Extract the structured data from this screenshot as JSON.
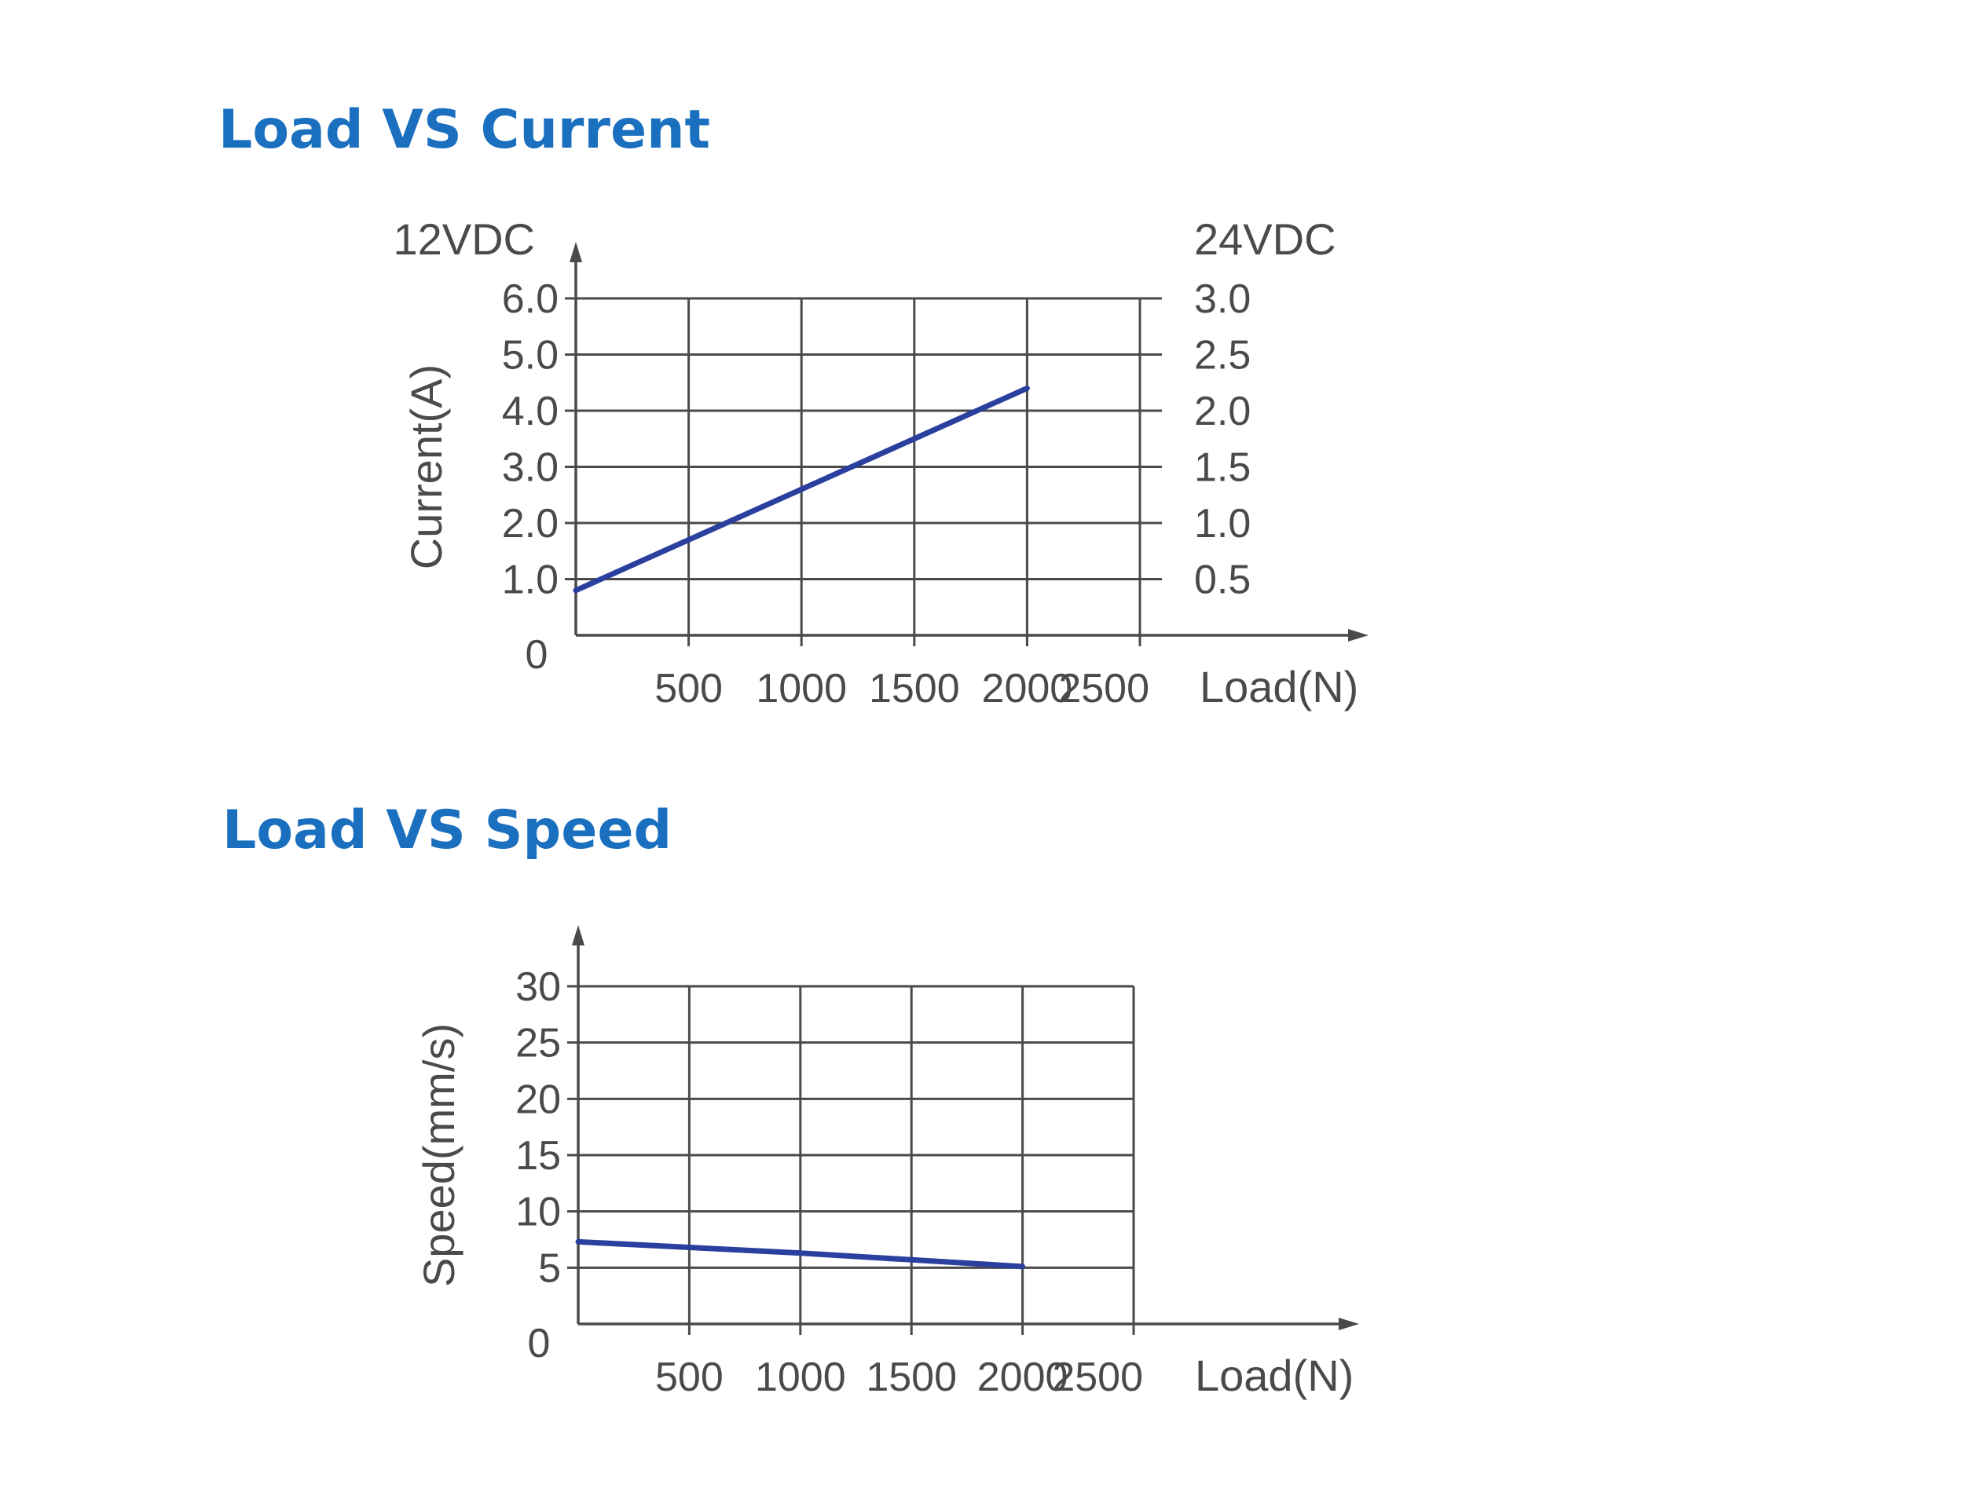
{
  "colors": {
    "title": "#1a6fbf",
    "line": "#2a3f9e",
    "grid": "#4a4a4a",
    "text": "#4a4a4a"
  },
  "chart_data": [
    {
      "type": "line",
      "title": "Load VS Current",
      "xlabel": "Load(N)",
      "ylabel": "Current(A)",
      "y_left_header": "12VDC",
      "y_right_header": "24VDC",
      "xlim": [
        0,
        2500
      ],
      "ylim": [
        0,
        6.0
      ],
      "x_ticks": [
        "500",
        "1000",
        "1500",
        "2000",
        "2500"
      ],
      "y_origin_label": "0",
      "y_ticks_left": [
        "1.0",
        "2.0",
        "3.0",
        "4.0",
        "5.0",
        "6.0"
      ],
      "y_ticks_right": [
        "0.5",
        "1.0",
        "1.5",
        "2.0",
        "2.5",
        "3.0"
      ],
      "grid": true,
      "series": [
        {
          "x": [
            0,
            500,
            1000,
            1500,
            2000
          ],
          "y": [
            0.8,
            1.7,
            2.6,
            3.5,
            4.4
          ]
        }
      ]
    },
    {
      "type": "line",
      "title": "Load VS Speed",
      "xlabel": "Load(N)",
      "ylabel": "Speed(mm/s)",
      "xlim": [
        0,
        2500
      ],
      "ylim": [
        0,
        30
      ],
      "x_ticks": [
        "500",
        "1000",
        "1500",
        "2000",
        "2500"
      ],
      "y_origin_label": "0",
      "y_ticks": [
        "5",
        "10",
        "15",
        "20",
        "25",
        "30"
      ],
      "grid": true,
      "series": [
        {
          "x": [
            0,
            500,
            1000,
            1500,
            2000
          ],
          "y": [
            7.3,
            6.8,
            6.3,
            5.7,
            5.1
          ]
        }
      ]
    }
  ]
}
